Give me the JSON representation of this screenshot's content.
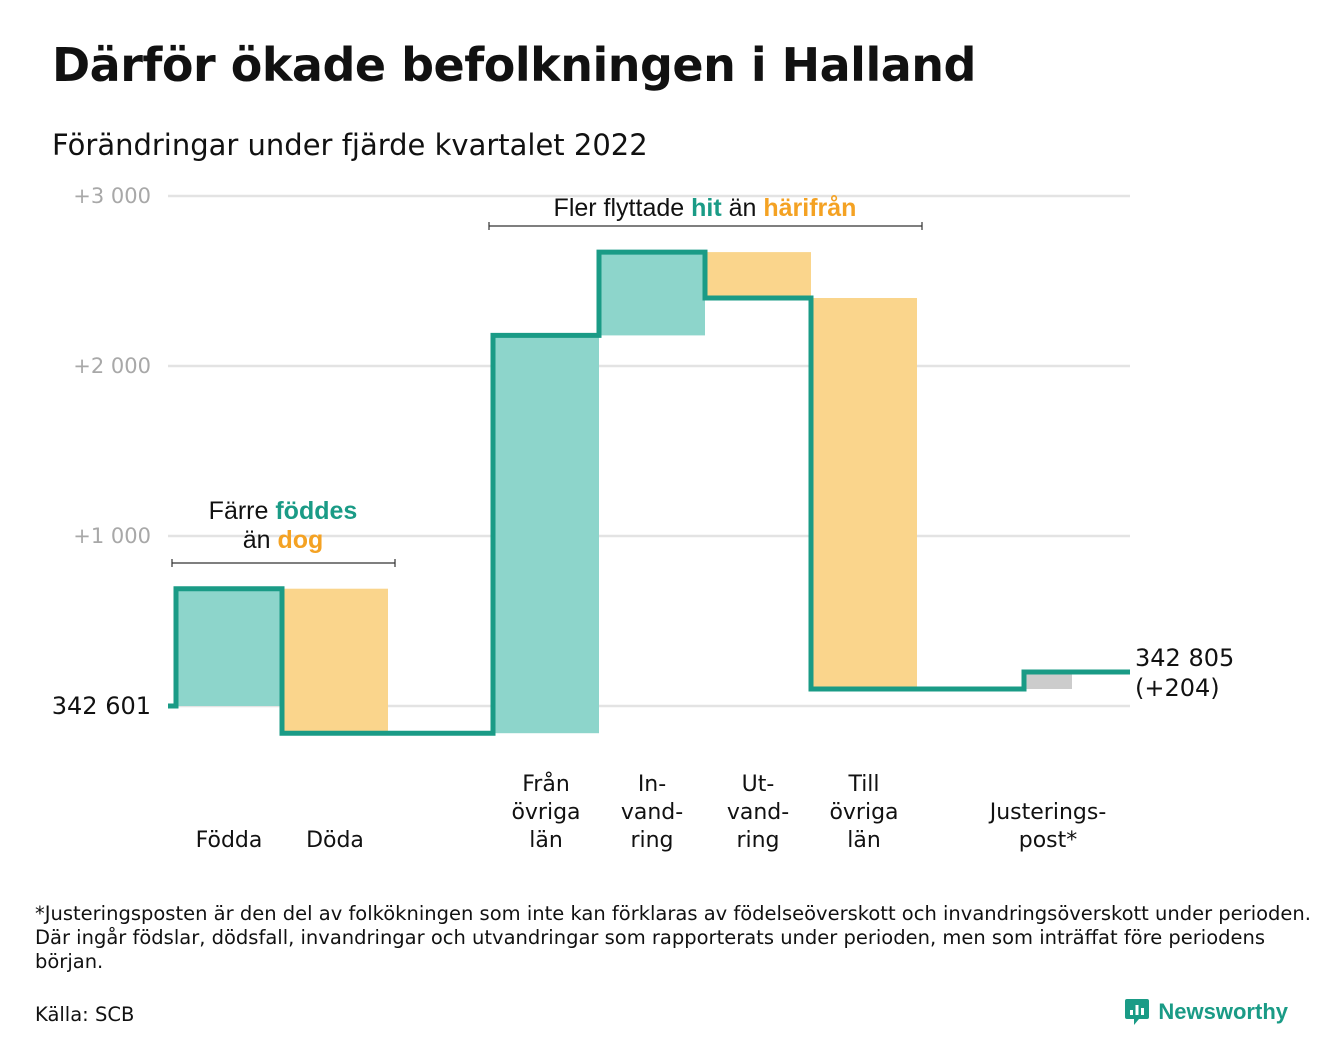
{
  "title": "Därför ökade befolkningen i Halland",
  "subtitle": "Förändringar under fjärde kvartalet 2022",
  "footnote": "*Justeringsposten är den del av folkökningen som inte kan förklaras av födelseöverskott och invandringsöverskott under perioden. Där ingår födslar, dödsfall, invandringar och utvandringar som rapporterats under perioden, men som inträffat före periodens början.",
  "source": "Källa: SCB",
  "brand": "Newsworthy",
  "colors": {
    "increase": "#8dd5cb",
    "decrease": "#fad58c",
    "adjustment": "#cccccc",
    "line": "#1a9b86",
    "highlight_teal": "#1a9b86",
    "highlight_orange": "#f4a223",
    "grid": "#e3e3e3"
  },
  "chart_data": {
    "type": "waterfall",
    "start": {
      "label": "342 601",
      "value": 0
    },
    "end": {
      "label": "342 805",
      "change": "(+204)",
      "value": 204
    },
    "ylim": [
      -170,
      3000
    ],
    "yticks": [
      {
        "value": 1000,
        "label": "+1 000"
      },
      {
        "value": 2000,
        "label": "+2 000"
      },
      {
        "value": 3000,
        "label": "+3 000"
      }
    ],
    "steps": [
      {
        "lines": [
          "Födda"
        ],
        "change": 690,
        "kind": "increase"
      },
      {
        "lines": [
          "Döda"
        ],
        "change": -850,
        "kind": "decrease"
      },
      {
        "lines": [
          "Från",
          "övriga",
          "län"
        ],
        "change": 2340,
        "kind": "increase"
      },
      {
        "lines": [
          "In-",
          "vand-",
          "ring"
        ],
        "change": 490,
        "kind": "increase"
      },
      {
        "lines": [
          "Ut-",
          "vand-",
          "ring"
        ],
        "change": -270,
        "kind": "decrease"
      },
      {
        "lines": [
          "Till",
          "övriga",
          "län"
        ],
        "change": -2300,
        "kind": "decrease"
      },
      {
        "lines": [
          "Justerings-",
          "post*"
        ],
        "change": 100,
        "kind": "adjustment"
      }
    ],
    "annotations": [
      {
        "lines": [
          [
            {
              "text": "Färre "
            },
            {
              "text": "föddes",
              "hl": "teal"
            }
          ],
          [
            {
              "text": "än "
            },
            {
              "text": "dog",
              "hl": "orange"
            }
          ]
        ]
      },
      {
        "lines": [
          [
            {
              "text": "Fler flyttade "
            },
            {
              "text": "hit",
              "hl": "teal"
            },
            {
              "text": " än "
            },
            {
              "text": "härifrån",
              "hl": "orange"
            }
          ]
        ]
      }
    ]
  }
}
